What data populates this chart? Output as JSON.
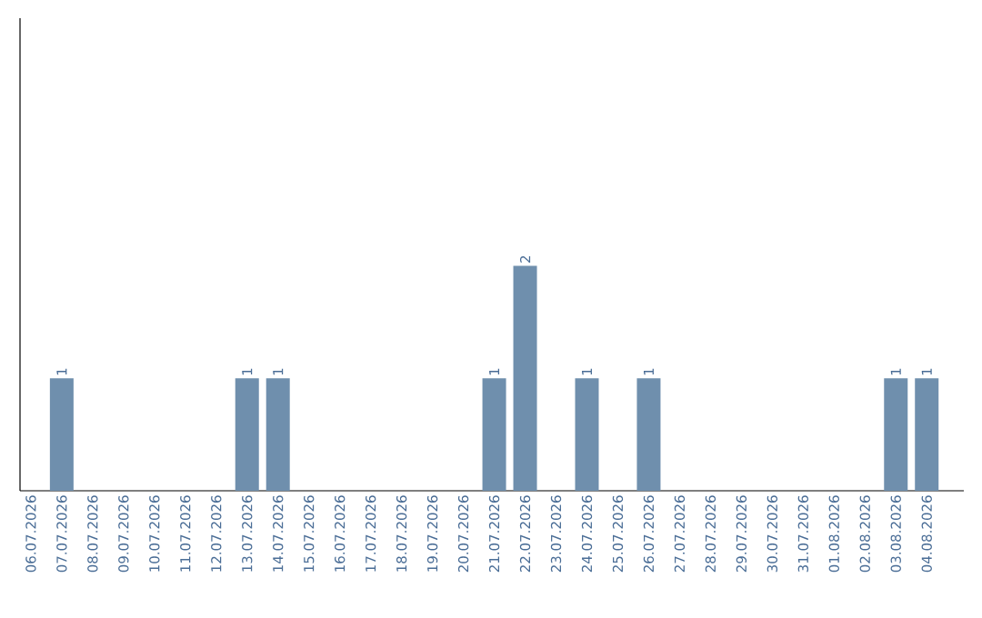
{
  "chart_data": {
    "type": "bar",
    "categories": [
      "06.07.2026",
      "07.07.2026",
      "08.07.2026",
      "09.07.2026",
      "10.07.2026",
      "11.07.2026",
      "12.07.2026",
      "13.07.2026",
      "14.07.2026",
      "15.07.2026",
      "16.07.2026",
      "17.07.2026",
      "18.07.2026",
      "19.07.2026",
      "20.07.2026",
      "21.07.2026",
      "22.07.2026",
      "23.07.2026",
      "24.07.2026",
      "25.07.2026",
      "26.07.2026",
      "27.07.2026",
      "28.07.2026",
      "29.07.2026",
      "30.07.2026",
      "31.07.2026",
      "01.08.2026",
      "02.08.2026",
      "03.08.2026",
      "04.08.2026"
    ],
    "values": [
      0,
      1,
      0,
      0,
      0,
      0,
      0,
      1,
      1,
      0,
      0,
      0,
      0,
      0,
      0,
      1,
      2,
      0,
      1,
      0,
      1,
      0,
      0,
      0,
      0,
      0,
      0,
      0,
      1,
      1
    ],
    "value_labels": [
      null,
      "1",
      null,
      null,
      null,
      null,
      null,
      "1",
      "1",
      null,
      null,
      null,
      null,
      null,
      null,
      "1",
      "2",
      null,
      "1",
      null,
      "1",
      null,
      null,
      null,
      null,
      null,
      null,
      null,
      "1",
      "1"
    ],
    "color": "#6f8fad",
    "ylim": [
      0,
      4.2
    ],
    "tick_labels": "x",
    "grid": false
  }
}
